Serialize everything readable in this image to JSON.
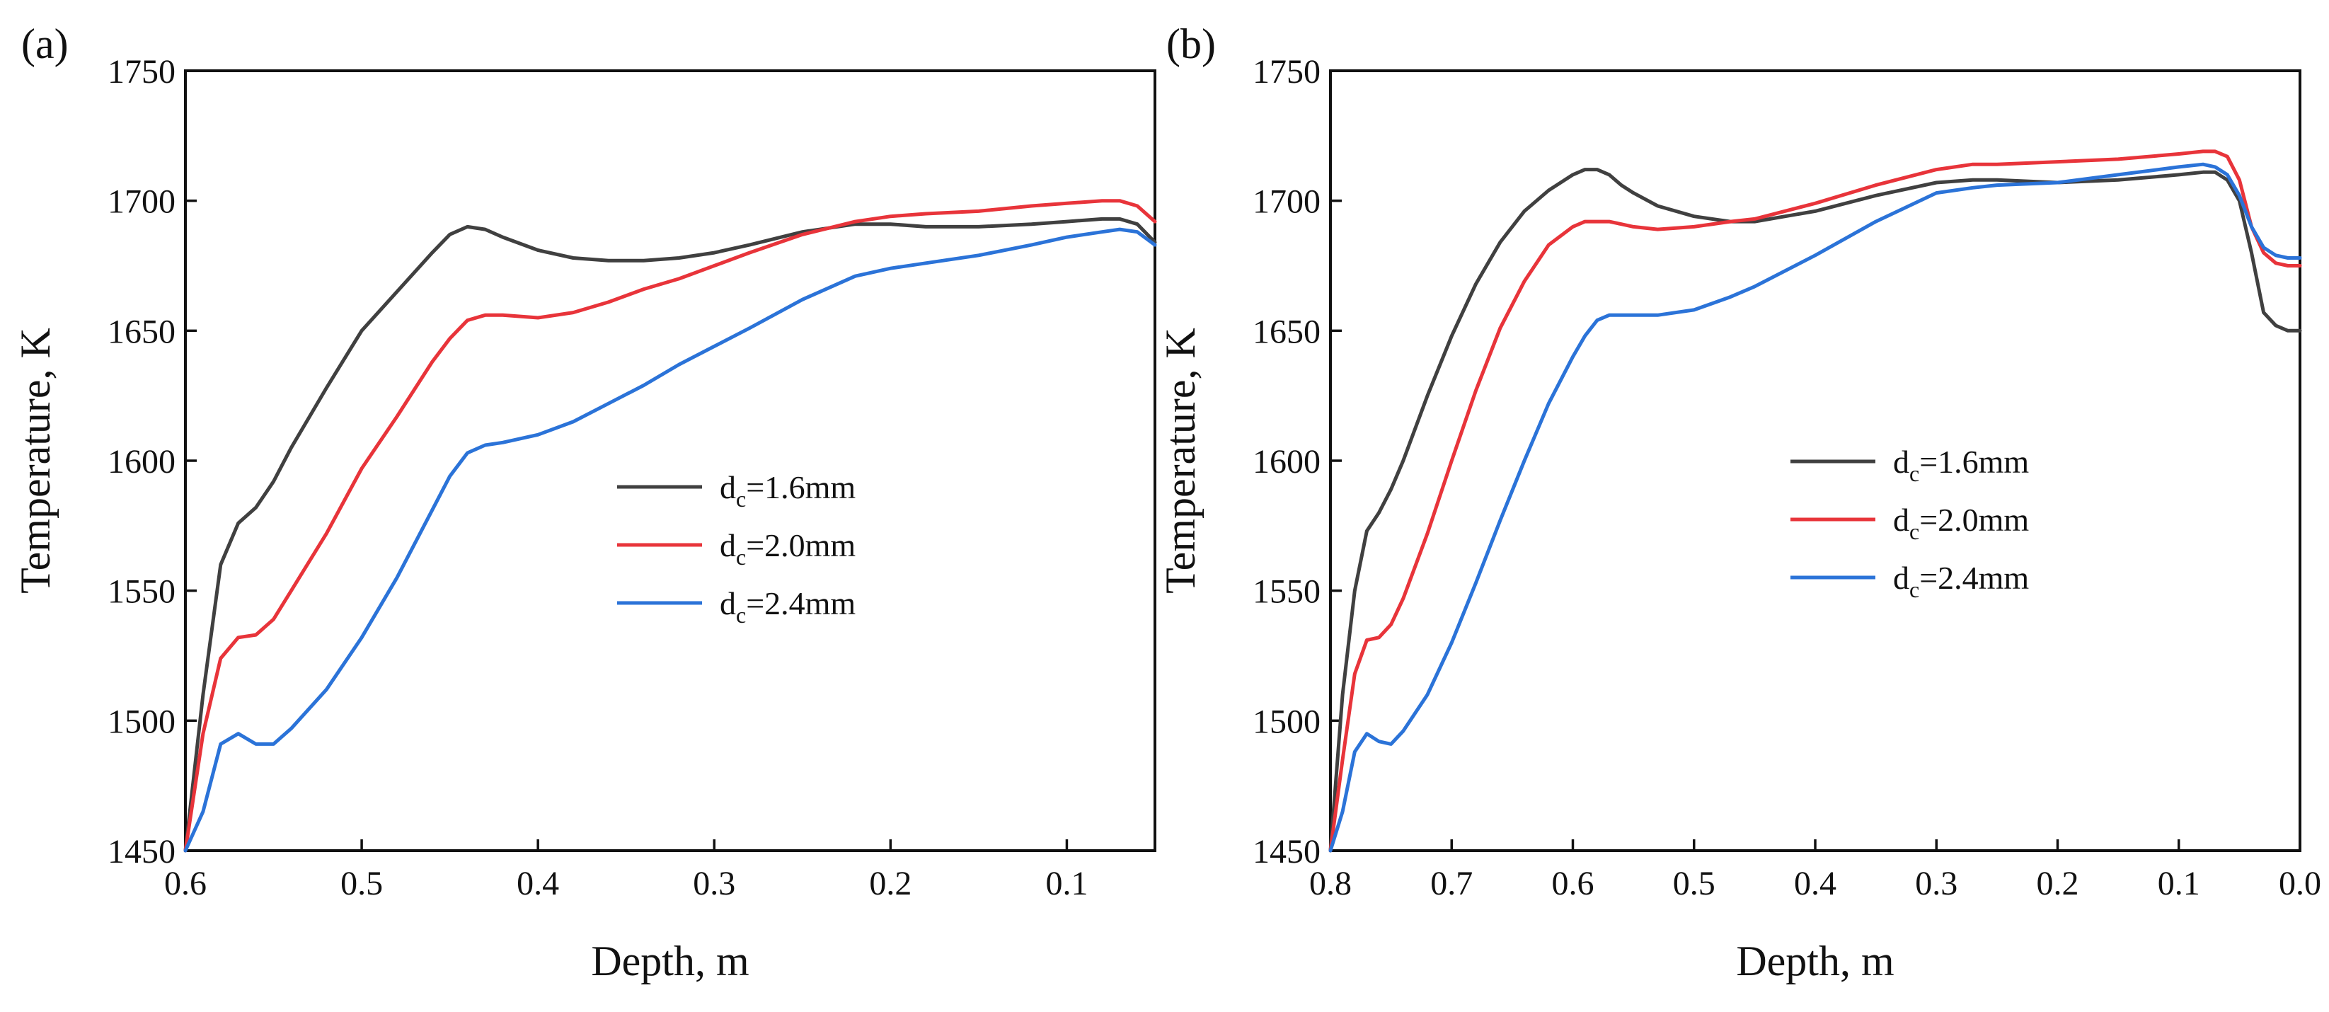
{
  "chart_data": [
    {
      "panel": "(a)",
      "type": "line",
      "xlabel": "Depth, m",
      "ylabel": "Temperature, K",
      "xlim": [
        0.6,
        0.05
      ],
      "ylim": [
        1450,
        1750
      ],
      "xticks": [
        0.6,
        0.5,
        0.4,
        0.3,
        0.2,
        0.1
      ],
      "xtick_labels": [
        "0.6",
        "0.5",
        "0.4",
        "0.3",
        "0.2",
        "0.1"
      ],
      "yticks": [
        1450,
        1500,
        1550,
        1600,
        1650,
        1700,
        1750
      ],
      "ytick_labels": [
        "1450",
        "1500",
        "1550",
        "1600",
        "1650",
        "1700",
        "1750"
      ],
      "grid": false,
      "legend_position": "center-right",
      "series": [
        {
          "name": "d_c=1.6mm",
          "legend_main": "d",
          "legend_sub": "c",
          "legend_rest": "=1.6mm",
          "color": "#404040",
          "x": [
            0.6,
            0.59,
            0.58,
            0.57,
            0.56,
            0.55,
            0.54,
            0.52,
            0.5,
            0.48,
            0.46,
            0.45,
            0.44,
            0.43,
            0.42,
            0.4,
            0.38,
            0.36,
            0.34,
            0.32,
            0.3,
            0.28,
            0.25,
            0.22,
            0.2,
            0.18,
            0.15,
            0.12,
            0.1,
            0.08,
            0.07,
            0.06,
            0.05
          ],
          "y": [
            1450,
            1510,
            1560,
            1576,
            1582,
            1592,
            1605,
            1628,
            1650,
            1665,
            1680,
            1687,
            1690,
            1689,
            1686,
            1681,
            1678,
            1677,
            1677,
            1678,
            1680,
            1683,
            1688,
            1691,
            1691,
            1690,
            1690,
            1691,
            1692,
            1693,
            1693,
            1691,
            1684
          ]
        },
        {
          "name": "d_c=2.0mm",
          "legend_main": "d",
          "legend_sub": "c",
          "legend_rest": "=2.0mm",
          "color": "#e8343a",
          "x": [
            0.6,
            0.59,
            0.58,
            0.57,
            0.56,
            0.55,
            0.54,
            0.52,
            0.5,
            0.48,
            0.46,
            0.45,
            0.44,
            0.43,
            0.42,
            0.4,
            0.38,
            0.36,
            0.34,
            0.32,
            0.3,
            0.28,
            0.25,
            0.22,
            0.2,
            0.18,
            0.15,
            0.12,
            0.1,
            0.08,
            0.07,
            0.06,
            0.05
          ],
          "y": [
            1450,
            1495,
            1524,
            1532,
            1533,
            1539,
            1550,
            1572,
            1597,
            1617,
            1638,
            1647,
            1654,
            1656,
            1656,
            1655,
            1657,
            1661,
            1666,
            1670,
            1675,
            1680,
            1687,
            1692,
            1694,
            1695,
            1696,
            1698,
            1699,
            1700,
            1700,
            1698,
            1692
          ]
        },
        {
          "name": "d_c=2.4mm",
          "legend_main": "d",
          "legend_sub": "c",
          "legend_rest": "=2.4mm",
          "color": "#2b73d8",
          "x": [
            0.6,
            0.59,
            0.58,
            0.57,
            0.56,
            0.55,
            0.54,
            0.52,
            0.5,
            0.48,
            0.46,
            0.45,
            0.44,
            0.43,
            0.42,
            0.4,
            0.38,
            0.36,
            0.34,
            0.32,
            0.3,
            0.28,
            0.25,
            0.22,
            0.2,
            0.18,
            0.15,
            0.12,
            0.1,
            0.08,
            0.07,
            0.06,
            0.05
          ],
          "y": [
            1450,
            1465,
            1491,
            1495,
            1491,
            1491,
            1497,
            1512,
            1532,
            1555,
            1581,
            1594,
            1603,
            1606,
            1607,
            1610,
            1615,
            1622,
            1629,
            1637,
            1644,
            1651,
            1662,
            1671,
            1674,
            1676,
            1679,
            1683,
            1686,
            1688,
            1689,
            1688,
            1683
          ]
        }
      ]
    },
    {
      "panel": "(b)",
      "type": "line",
      "xlabel": "Depth, m",
      "ylabel": "Temperature, K",
      "xlim": [
        0.8,
        0.0
      ],
      "ylim": [
        1450,
        1750
      ],
      "xticks": [
        0.8,
        0.7,
        0.6,
        0.5,
        0.4,
        0.3,
        0.2,
        0.1,
        0.0
      ],
      "xtick_labels": [
        "0.8",
        "0.7",
        "0.6",
        "0.5",
        "0.4",
        "0.3",
        "0.2",
        "0.1",
        "0.0"
      ],
      "yticks": [
        1450,
        1500,
        1550,
        1600,
        1650,
        1700,
        1750
      ],
      "ytick_labels": [
        "1450",
        "1500",
        "1550",
        "1600",
        "1650",
        "1700",
        "1750"
      ],
      "grid": false,
      "legend_position": "center-right",
      "series": [
        {
          "name": "d_c=1.6mm",
          "legend_main": "d",
          "legend_sub": "c",
          "legend_rest": "=1.6mm",
          "color": "#404040",
          "x": [
            0.8,
            0.79,
            0.78,
            0.77,
            0.76,
            0.75,
            0.74,
            0.72,
            0.7,
            0.68,
            0.66,
            0.64,
            0.62,
            0.6,
            0.59,
            0.58,
            0.57,
            0.56,
            0.55,
            0.53,
            0.5,
            0.47,
            0.45,
            0.4,
            0.35,
            0.3,
            0.27,
            0.25,
            0.2,
            0.15,
            0.1,
            0.08,
            0.07,
            0.06,
            0.05,
            0.04,
            0.03,
            0.02,
            0.01,
            0.0
          ],
          "y": [
            1450,
            1510,
            1550,
            1573,
            1580,
            1589,
            1600,
            1625,
            1648,
            1668,
            1684,
            1696,
            1704,
            1710,
            1712,
            1712,
            1710,
            1706,
            1703,
            1698,
            1694,
            1692,
            1692,
            1696,
            1702,
            1707,
            1708,
            1708,
            1707,
            1708,
            1710,
            1711,
            1711,
            1708,
            1700,
            1680,
            1657,
            1652,
            1650,
            1650
          ]
        },
        {
          "name": "d_c=2.0mm",
          "legend_main": "d",
          "legend_sub": "c",
          "legend_rest": "=2.0mm",
          "color": "#e8343a",
          "x": [
            0.8,
            0.79,
            0.78,
            0.77,
            0.76,
            0.75,
            0.74,
            0.72,
            0.7,
            0.68,
            0.66,
            0.64,
            0.62,
            0.6,
            0.59,
            0.58,
            0.57,
            0.56,
            0.55,
            0.53,
            0.5,
            0.47,
            0.45,
            0.4,
            0.35,
            0.3,
            0.27,
            0.25,
            0.2,
            0.15,
            0.1,
            0.08,
            0.07,
            0.06,
            0.05,
            0.04,
            0.03,
            0.02,
            0.01,
            0.0
          ],
          "y": [
            1450,
            1485,
            1518,
            1531,
            1532,
            1537,
            1547,
            1572,
            1600,
            1627,
            1651,
            1669,
            1683,
            1690,
            1692,
            1692,
            1692,
            1691,
            1690,
            1689,
            1690,
            1692,
            1693,
            1699,
            1706,
            1712,
            1714,
            1714,
            1715,
            1716,
            1718,
            1719,
            1719,
            1717,
            1708,
            1690,
            1680,
            1676,
            1675,
            1675
          ]
        },
        {
          "name": "d_c=2.4mm",
          "legend_main": "d",
          "legend_sub": "c",
          "legend_rest": "=2.4mm",
          "color": "#2b73d8",
          "x": [
            0.8,
            0.79,
            0.78,
            0.77,
            0.76,
            0.75,
            0.74,
            0.72,
            0.7,
            0.68,
            0.66,
            0.64,
            0.62,
            0.6,
            0.59,
            0.58,
            0.57,
            0.56,
            0.55,
            0.53,
            0.5,
            0.47,
            0.45,
            0.4,
            0.35,
            0.3,
            0.27,
            0.25,
            0.2,
            0.15,
            0.1,
            0.08,
            0.07,
            0.06,
            0.05,
            0.04,
            0.03,
            0.02,
            0.01,
            0.0
          ],
          "y": [
            1450,
            1465,
            1488,
            1495,
            1492,
            1491,
            1496,
            1510,
            1530,
            1553,
            1577,
            1600,
            1622,
            1640,
            1648,
            1654,
            1656,
            1656,
            1656,
            1656,
            1658,
            1663,
            1667,
            1679,
            1692,
            1703,
            1705,
            1706,
            1707,
            1710,
            1713,
            1714,
            1713,
            1710,
            1702,
            1690,
            1682,
            1679,
            1678,
            1678
          ]
        }
      ]
    }
  ]
}
